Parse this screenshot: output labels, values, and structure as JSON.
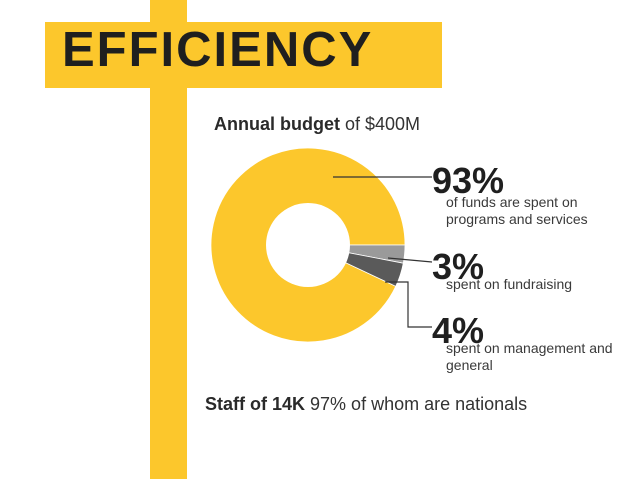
{
  "header": {
    "title": "EFFICIENCY"
  },
  "budget": {
    "label": "Annual budget",
    "value": "of $400M"
  },
  "chart_data": {
    "type": "pie",
    "donut": true,
    "title": "",
    "slices": [
      {
        "label": "programs and services",
        "value": 93,
        "pct_text": "93%",
        "desc": "of funds are spent on programs and services",
        "color": "#fcc72c"
      },
      {
        "label": "fundraising",
        "value": 3,
        "pct_text": "3%",
        "desc": "spent on fundraising",
        "color": "#9a9a9a"
      },
      {
        "label": "management and general",
        "value": 4,
        "pct_text": "4%",
        "desc": "spent on management and general",
        "color": "#5a5a5a"
      }
    ]
  },
  "staff": {
    "label": "Staff of 14K",
    "value": "97% of whom are nationals"
  },
  "colors": {
    "accent": "#fcc72c",
    "text": "#1f1f1f"
  }
}
